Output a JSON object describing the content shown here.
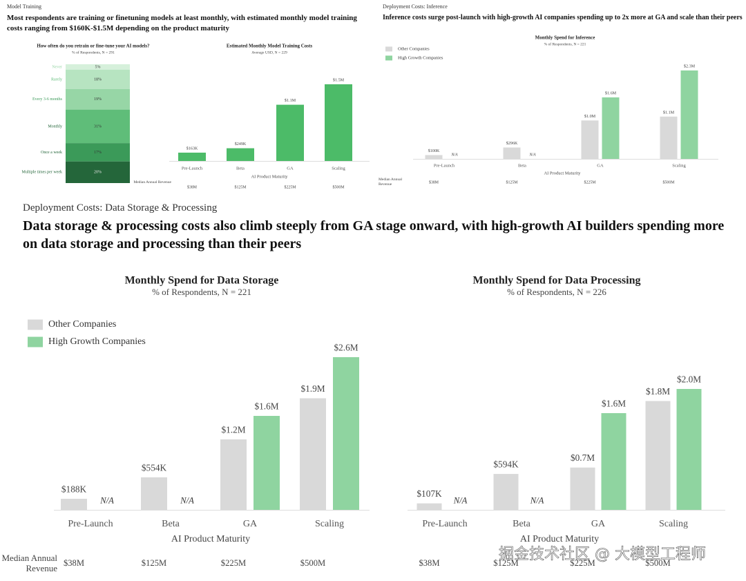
{
  "sections": [
    {
      "label": "Model Training",
      "heading": "Most respondents are training or finetuning models at least monthly, with estimated monthly model training costs ranging from $160K-$1.5M depending on the product maturity"
    },
    {
      "label": "Deployment Costs: Inference",
      "heading": "Inference costs surge post-launch with high-growth AI companies spending up to 2x more at GA and scale than their peers"
    },
    {
      "label": "Deployment Costs: Data Storage & Processing",
      "heading": "Data storage & processing costs also climb steeply from GA stage onward, with high-growth AI builders spending more on data storage and processing than their peers"
    }
  ],
  "watermark": "掘金技术社区 @ 大模型工程师",
  "chart_data": [
    {
      "type": "stacked-bar",
      "title": "How often do you retrain or fine-tune your AI models?",
      "subtitle": "% of Respondents, N = 291",
      "categories": [
        "Never",
        "Rarely",
        "Every 3-6 months",
        "Monthly",
        "Once a week",
        "Multiple times per week"
      ],
      "values": [
        5,
        18,
        19,
        31,
        17,
        20
      ],
      "value_labels": [
        "5%",
        "18%",
        "19%",
        "31%",
        "17%",
        "20%"
      ],
      "colors": [
        "#d6f0db",
        "#b7e4c1",
        "#97d6a6",
        "#5fbd79",
        "#3b9a59",
        "#24663a"
      ]
    },
    {
      "type": "bar",
      "title": "Estimated Monthly Model Training Costs",
      "subtitle": "Average USD, N = 229",
      "categories": [
        "Pre-Launch",
        "Beta",
        "GA",
        "Scaling"
      ],
      "values": [
        163000,
        249000,
        1100000,
        1500000
      ],
      "value_labels": [
        "$163K",
        "$249K",
        "$1.1M",
        "$1.5M"
      ],
      "color": "#4cbb68",
      "x_label": "AI Product Maturity",
      "row_label": "Median Annual Revenue",
      "row_values": [
        "$38M",
        "$125M",
        "$225M",
        "$500M"
      ]
    },
    {
      "type": "grouped-bar",
      "title": "Monthly Spend for Inference",
      "subtitle": "% of Respondents, N = 221",
      "categories": [
        "Pre-Launch",
        "Beta",
        "GA",
        "Scaling"
      ],
      "series": [
        {
          "name": "Other Companies",
          "color": "#d9d9d9",
          "values": [
            100000,
            296000,
            1000000,
            1100000
          ],
          "value_labels": [
            "$100K",
            "$296K",
            "$1.0M",
            "$1.1M"
          ]
        },
        {
          "name": "High Growth Companies",
          "color": "#8fd4a0",
          "values": [
            null,
            null,
            1600000,
            2300000
          ],
          "value_labels": [
            "N/A",
            "N/A",
            "$1.6M",
            "$2.3M"
          ]
        }
      ],
      "legend": "upper left",
      "x_label": "AI Product Maturity",
      "row_label": "Median Annual Revenue",
      "row_values": [
        "$38M",
        "$125M",
        "$225M",
        "$500M"
      ]
    },
    {
      "type": "grouped-bar",
      "title": "Monthly Spend for Data Storage",
      "subtitle": "% of Respondents, N = 221",
      "categories": [
        "Pre-Launch",
        "Beta",
        "GA",
        "Scaling"
      ],
      "series": [
        {
          "name": "Other Companies",
          "color": "#d9d9d9",
          "values": [
            188000,
            554000,
            1200000,
            1900000
          ],
          "value_labels": [
            "$188K",
            "$554K",
            "$1.2M",
            "$1.9M"
          ]
        },
        {
          "name": "High Growth Companies",
          "color": "#8fd4a0",
          "values": [
            null,
            null,
            1600000,
            2600000
          ],
          "value_labels": [
            "N/A",
            "N/A",
            "$1.6M",
            "$2.6M"
          ]
        }
      ],
      "legend": "upper left",
      "x_label": "AI Product Maturity",
      "row_label": "Median Annual Revenue",
      "row_values": [
        "$38M",
        "$125M",
        "$225M",
        "$500M"
      ]
    },
    {
      "type": "grouped-bar",
      "title": "Monthly Spend for Data Processing",
      "subtitle": "% of Respondents, N = 226",
      "categories": [
        "Pre-Launch",
        "Beta",
        "GA",
        "Scaling"
      ],
      "series": [
        {
          "name": "Other Companies",
          "color": "#d9d9d9",
          "values": [
            107000,
            594000,
            700000,
            1800000
          ],
          "value_labels": [
            "$107K",
            "$594K",
            "$0.7M",
            "$1.8M"
          ]
        },
        {
          "name": "High Growth Companies",
          "color": "#8fd4a0",
          "values": [
            null,
            null,
            1600000,
            2000000
          ],
          "value_labels": [
            "N/A",
            "N/A",
            "$1.6M",
            "$2.0M"
          ]
        }
      ],
      "x_label": "AI Product Maturity",
      "row_values": [
        "$38M",
        "$125M",
        "$225M",
        "$500M"
      ]
    }
  ]
}
